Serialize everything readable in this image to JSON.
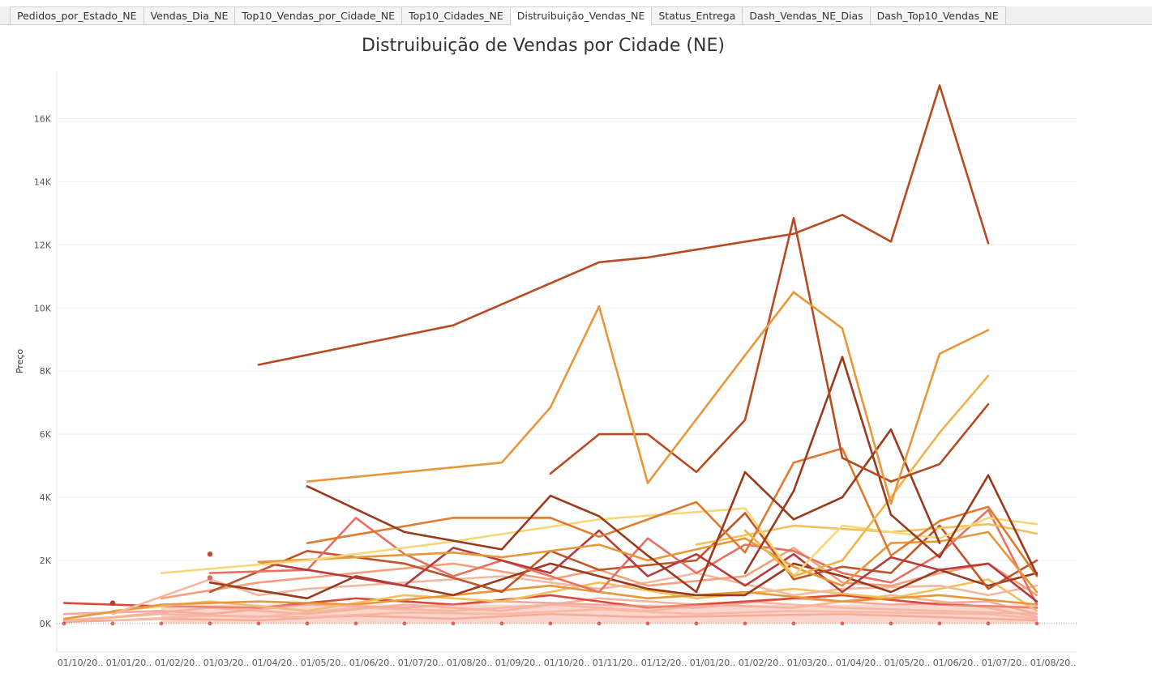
{
  "tabs": [
    {
      "label": "Pedidos_por_Estado_NE",
      "active": false
    },
    {
      "label": "Vendas_Dia_NE",
      "active": false
    },
    {
      "label": "Top10_Vendas_por_Cidade_NE",
      "active": false
    },
    {
      "label": "Top10_Cidades_NE",
      "active": false
    },
    {
      "label": "Distruibuição_Vendas_NE",
      "active": true
    },
    {
      "label": "Status_Entrega",
      "active": false
    },
    {
      "label": "Dash_Vendas_NE_Dias",
      "active": false
    },
    {
      "label": "Dash_Top10_Vendas_NE",
      "active": false
    }
  ],
  "chart_data": {
    "type": "line",
    "title": "Distruibuição de Vendas por Cidade (NE)",
    "ylabel": "Preço",
    "xlabel": "",
    "ylim": [
      -900,
      17500
    ],
    "yticks": [
      0,
      2000,
      4000,
      6000,
      8000,
      10000,
      12000,
      14000,
      16000
    ],
    "ytick_labels": [
      "0K",
      "2K",
      "4K",
      "6K",
      "8K",
      "10K",
      "12K",
      "14K",
      "16K"
    ],
    "x_tick_labels": [
      "01/10/20..",
      "01/01/20..",
      "01/02/20..",
      "01/03/20..",
      "01/04/20..",
      "01/05/20..",
      "01/06/20..",
      "01/07/20..",
      "01/08/20..",
      "01/09/20..",
      "01/10/20..",
      "01/11/20..",
      "01/12/20..",
      "01/01/20..",
      "01/02/20..",
      "01/03/20..",
      "01/04/20..",
      "01/05/20..",
      "01/06/20..",
      "01/07/20..",
      "01/08/20.."
    ],
    "grid": true,
    "legend": "none",
    "series": [
      {
        "color": "#b84a20",
        "points": [
          [
            4,
            8200
          ],
          [
            8,
            9450
          ],
          [
            11,
            11450
          ],
          [
            12,
            11600
          ],
          [
            13,
            11850
          ],
          [
            15,
            12350
          ],
          [
            16,
            12950
          ],
          [
            17,
            12100
          ],
          [
            18,
            17050
          ],
          [
            19,
            12050
          ]
        ]
      },
      {
        "color": "#e8963a",
        "points": [
          [
            5,
            4500
          ],
          [
            9,
            5100
          ],
          [
            10,
            6850
          ],
          [
            11,
            10050
          ],
          [
            12,
            4450
          ],
          [
            14,
            8500
          ],
          [
            15,
            10500
          ],
          [
            16,
            9350
          ],
          [
            17,
            3800
          ],
          [
            18,
            8550
          ],
          [
            19,
            9300
          ]
        ]
      },
      {
        "color": "#b84a20",
        "points": [
          [
            10,
            4750
          ],
          [
            11,
            6000
          ],
          [
            12,
            6000
          ],
          [
            13,
            4800
          ],
          [
            14,
            6450
          ],
          [
            15,
            12850
          ],
          [
            16,
            5250
          ],
          [
            17,
            4500
          ],
          [
            18,
            5050
          ],
          [
            19,
            6950
          ]
        ]
      },
      {
        "color": "#9a3a1c",
        "points": [
          [
            14,
            1600
          ],
          [
            15,
            4200
          ],
          [
            16,
            8450
          ],
          [
            17,
            3450
          ],
          [
            18,
            2100
          ],
          [
            19,
            4700
          ],
          [
            20,
            1550
          ]
        ]
      },
      {
        "color": "#f0b347",
        "points": [
          [
            14,
            2950
          ],
          [
            15,
            1500
          ],
          [
            16,
            2000
          ],
          [
            17,
            4000
          ],
          [
            18,
            6050
          ],
          [
            19,
            7850
          ]
        ]
      },
      {
        "color": "#9a3a1c",
        "points": [
          [
            5,
            4350
          ],
          [
            7,
            2900
          ],
          [
            9,
            2350
          ],
          [
            10,
            4050
          ],
          [
            11,
            3400
          ],
          [
            12,
            2150
          ],
          [
            13,
            1000
          ],
          [
            14,
            4800
          ],
          [
            15,
            3300
          ],
          [
            16,
            4000
          ],
          [
            17,
            6150
          ],
          [
            18,
            2550
          ]
        ]
      },
      {
        "color": "#e07a2e",
        "points": [
          [
            5,
            2550
          ],
          [
            8,
            3350
          ],
          [
            10,
            3350
          ],
          [
            11,
            2750
          ],
          [
            13,
            3850
          ],
          [
            14,
            2250
          ],
          [
            15,
            5100
          ],
          [
            16,
            5550
          ],
          [
            17,
            2150
          ],
          [
            18,
            3250
          ],
          [
            19,
            3700
          ],
          [
            20,
            1500
          ]
        ]
      },
      {
        "color": "#f5d77a",
        "points": [
          [
            2,
            1600
          ],
          [
            5,
            2000
          ],
          [
            8,
            2600
          ],
          [
            11,
            3300
          ],
          [
            14,
            3650
          ],
          [
            15,
            1500
          ],
          [
            16,
            3100
          ],
          [
            18,
            2700
          ],
          [
            19,
            3350
          ],
          [
            20,
            3150
          ]
        ]
      },
      {
        "color": "#f0c05a",
        "points": [
          [
            13,
            2500
          ],
          [
            15,
            3100
          ],
          [
            17,
            2900
          ],
          [
            19,
            3150
          ],
          [
            20,
            2850
          ]
        ]
      },
      {
        "color": "#e8963a",
        "points": [
          [
            4,
            1950
          ],
          [
            6,
            2100
          ],
          [
            8,
            2250
          ],
          [
            9,
            2100
          ],
          [
            11,
            2500
          ],
          [
            12,
            2000
          ],
          [
            14,
            2700
          ],
          [
            15,
            1800
          ],
          [
            16,
            1200
          ],
          [
            17,
            2550
          ],
          [
            18,
            2600
          ],
          [
            19,
            2900
          ],
          [
            20,
            1000
          ]
        ]
      },
      {
        "color": "#b83a3a",
        "points": [
          [
            4,
            1950
          ],
          [
            7,
            1200
          ],
          [
            8,
            2400
          ],
          [
            10,
            1600
          ],
          [
            11,
            2950
          ],
          [
            12,
            1500
          ],
          [
            13,
            2200
          ],
          [
            14,
            1200
          ],
          [
            15,
            2200
          ],
          [
            16,
            1000
          ],
          [
            17,
            2100
          ],
          [
            18,
            1700
          ],
          [
            19,
            1900
          ],
          [
            20,
            700
          ]
        ]
      },
      {
        "color": "#e87060",
        "points": [
          [
            3,
            1600
          ],
          [
            5,
            1700
          ],
          [
            6,
            3350
          ],
          [
            7,
            2200
          ],
          [
            8,
            1500
          ],
          [
            9,
            2000
          ],
          [
            10,
            1500
          ],
          [
            11,
            1000
          ],
          [
            12,
            2700
          ],
          [
            13,
            1600
          ],
          [
            14,
            2500
          ],
          [
            15,
            2300
          ],
          [
            16,
            1600
          ],
          [
            17,
            1300
          ],
          [
            18,
            2200
          ],
          [
            19,
            3600
          ],
          [
            20,
            600
          ]
        ]
      },
      {
        "color": "#c0552a",
        "points": [
          [
            3,
            1000
          ],
          [
            5,
            2300
          ],
          [
            7,
            1900
          ],
          [
            9,
            1000
          ],
          [
            10,
            2300
          ],
          [
            11,
            1700
          ],
          [
            13,
            2000
          ],
          [
            14,
            3500
          ],
          [
            15,
            1400
          ],
          [
            16,
            1800
          ],
          [
            17,
            1600
          ],
          [
            18,
            3100
          ],
          [
            19,
            1100
          ],
          [
            20,
            2000
          ]
        ]
      },
      {
        "color": "#9a3a1c",
        "points": [
          [
            3,
            1300
          ],
          [
            5,
            800
          ],
          [
            6,
            1500
          ],
          [
            8,
            900
          ],
          [
            10,
            1900
          ],
          [
            11,
            1500
          ],
          [
            12,
            1100
          ],
          [
            13,
            900
          ],
          [
            14,
            900
          ],
          [
            15,
            1900
          ],
          [
            16,
            1500
          ],
          [
            17,
            1000
          ],
          [
            18,
            1700
          ],
          [
            19,
            1200
          ],
          [
            20,
            1600
          ]
        ]
      },
      {
        "color": "#f5a07a",
        "points": [
          [
            2,
            800
          ],
          [
            4,
            1300
          ],
          [
            6,
            1600
          ],
          [
            8,
            1900
          ],
          [
            10,
            1400
          ],
          [
            11,
            1700
          ],
          [
            12,
            1200
          ],
          [
            14,
            1500
          ],
          [
            15,
            2400
          ],
          [
            16,
            1300
          ],
          [
            17,
            1200
          ],
          [
            18,
            1600
          ],
          [
            19,
            1900
          ],
          [
            20,
            900
          ]
        ]
      },
      {
        "color": "#f4b8a0",
        "points": [
          [
            1,
            300
          ],
          [
            3,
            1400
          ],
          [
            4,
            900
          ],
          [
            5,
            1100
          ],
          [
            7,
            1300
          ],
          [
            9,
            1500
          ],
          [
            11,
            1100
          ],
          [
            12,
            1300
          ],
          [
            13,
            1600
          ],
          [
            15,
            900
          ],
          [
            16,
            1100
          ],
          [
            18,
            1200
          ],
          [
            19,
            900
          ],
          [
            20,
            1200
          ]
        ]
      },
      {
        "color": "#e8963a",
        "points": [
          [
            0,
            150
          ],
          [
            2,
            600
          ],
          [
            4,
            700
          ],
          [
            6,
            600
          ],
          [
            8,
            900
          ],
          [
            10,
            1200
          ],
          [
            12,
            800
          ],
          [
            14,
            1000
          ],
          [
            16,
            700
          ],
          [
            18,
            900
          ],
          [
            20,
            600
          ]
        ]
      },
      {
        "color": "#f0c05a",
        "points": [
          [
            1,
            400
          ],
          [
            3,
            700
          ],
          [
            5,
            400
          ],
          [
            7,
            900
          ],
          [
            9,
            700
          ],
          [
            11,
            1300
          ],
          [
            13,
            800
          ],
          [
            15,
            1100
          ],
          [
            17,
            800
          ],
          [
            19,
            1400
          ],
          [
            20,
            400
          ]
        ]
      },
      {
        "color": "#d94a3a",
        "points": [
          [
            0,
            650
          ],
          [
            2,
            550
          ],
          [
            4,
            500
          ],
          [
            6,
            800
          ],
          [
            8,
            600
          ],
          [
            10,
            900
          ],
          [
            12,
            500
          ],
          [
            14,
            700
          ],
          [
            16,
            900
          ],
          [
            18,
            600
          ],
          [
            20,
            500
          ]
        ]
      },
      {
        "color": "#f2a9a0",
        "points": [
          [
            0,
            300
          ],
          [
            2,
            400
          ],
          [
            3,
            300
          ],
          [
            5,
            600
          ],
          [
            7,
            500
          ],
          [
            9,
            700
          ],
          [
            11,
            600
          ],
          [
            13,
            500
          ],
          [
            15,
            800
          ],
          [
            17,
            600
          ],
          [
            19,
            700
          ],
          [
            20,
            300
          ]
        ]
      },
      {
        "color": "#f5b49a",
        "points": [
          [
            0,
            100
          ],
          [
            1,
            200
          ],
          [
            3,
            500
          ],
          [
            5,
            300
          ],
          [
            7,
            600
          ],
          [
            9,
            400
          ],
          [
            11,
            800
          ],
          [
            13,
            600
          ],
          [
            15,
            500
          ],
          [
            17,
            900
          ],
          [
            19,
            500
          ],
          [
            20,
            200
          ]
        ]
      },
      {
        "color": "#f7bca8",
        "points": [
          [
            0,
            80
          ],
          [
            2,
            300
          ],
          [
            4,
            200
          ],
          [
            6,
            500
          ],
          [
            8,
            400
          ],
          [
            10,
            600
          ],
          [
            12,
            400
          ],
          [
            14,
            700
          ],
          [
            16,
            500
          ],
          [
            18,
            400
          ],
          [
            20,
            300
          ]
        ]
      },
      {
        "color": "#f8c0ac",
        "points": [
          [
            1,
            100
          ],
          [
            3,
            250
          ],
          [
            5,
            200
          ],
          [
            7,
            350
          ],
          [
            9,
            300
          ],
          [
            11,
            450
          ],
          [
            13,
            300
          ],
          [
            15,
            400
          ],
          [
            17,
            350
          ],
          [
            19,
            300
          ],
          [
            20,
            150
          ]
        ]
      },
      {
        "color": "#f5a590",
        "points": [
          [
            0,
            50
          ],
          [
            2,
            150
          ],
          [
            4,
            100
          ],
          [
            6,
            250
          ],
          [
            8,
            150
          ],
          [
            10,
            300
          ],
          [
            12,
            200
          ],
          [
            14,
            250
          ],
          [
            16,
            300
          ],
          [
            18,
            200
          ],
          [
            20,
            100
          ]
        ]
      }
    ],
    "points": [
      {
        "x": 1,
        "y": 650,
        "color": "#c0392b"
      },
      {
        "x": 3,
        "y": 2200,
        "color": "#d0452e"
      },
      {
        "x": 3,
        "y": 1450,
        "color": "#e06a55"
      }
    ]
  }
}
